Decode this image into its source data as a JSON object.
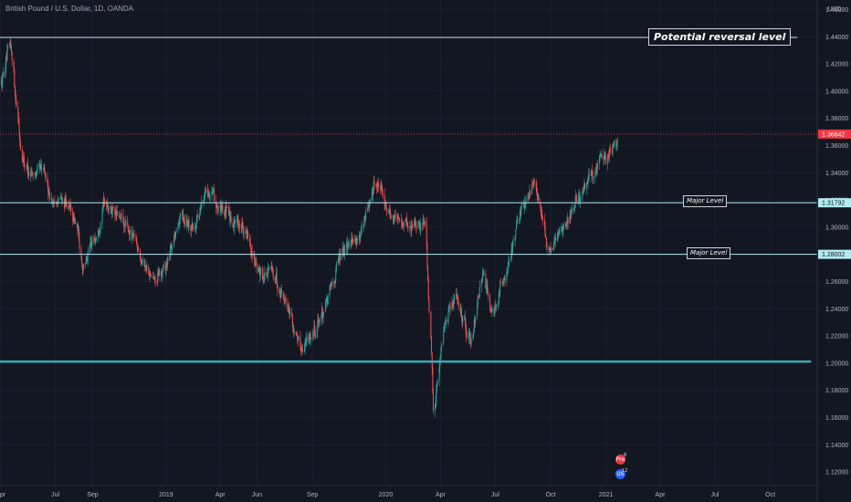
{
  "header": {
    "symbol_title": "British Pound / U.S. Dollar, 1D, OANDA",
    "currency": "USD"
  },
  "colors": {
    "background": "#131722",
    "grid": "#1c2030",
    "up": "#26a69a",
    "down": "#ef5350",
    "axis_text": "#b2b5be",
    "hline_white": "#d1d4dc",
    "hline_cyan": "#b2ebf2",
    "hline_teal": "#3aa6b9",
    "price_tag": "#f23645"
  },
  "annotations": {
    "potential_reversal": "Potential reversal level",
    "major_level_1": "Major Level",
    "major_level_2": "Major Level"
  },
  "events": {
    "marker_top_label": "Pre",
    "marker_top_count": "8",
    "marker_bottom_label": "US",
    "marker_bottom_count": "12"
  },
  "chart_data": {
    "type": "candlestick",
    "ylim": [
      1.11,
      1.465
    ],
    "y_ticks": [
      {
        "value": 1.12,
        "label": "1.12000"
      },
      {
        "value": 1.14,
        "label": "1.14000"
      },
      {
        "value": 1.16,
        "label": "1.16000"
      },
      {
        "value": 1.18,
        "label": "1.18000"
      },
      {
        "value": 1.2,
        "label": "1.20000"
      },
      {
        "value": 1.22,
        "label": "1.22000"
      },
      {
        "value": 1.24,
        "label": "1.24000"
      },
      {
        "value": 1.26,
        "label": "1.26000"
      },
      {
        "value": 1.28,
        "label": "1.28000"
      },
      {
        "value": 1.3,
        "label": "1.30000"
      },
      {
        "value": 1.32,
        "label": "1.32000"
      },
      {
        "value": 1.34,
        "label": "1.34000"
      },
      {
        "value": 1.36,
        "label": "1.36000"
      },
      {
        "value": 1.38,
        "label": "1.38000"
      },
      {
        "value": 1.4,
        "label": "1.40000"
      },
      {
        "value": 1.42,
        "label": "1.42000"
      },
      {
        "value": 1.44,
        "label": "1.44000"
      },
      {
        "value": 1.46,
        "label": "1.46000"
      }
    ],
    "x_ticks": [
      "Apr",
      "Jul",
      "Sep",
      "2019",
      "Apr",
      "Jun",
      "Sep",
      "2020",
      "Apr",
      "Jul",
      "Oct",
      "2021",
      "Apr",
      "Jul",
      "Oct"
    ],
    "x_tick_dates": [
      "2018-04-01",
      "2018-07-01",
      "2018-09-01",
      "2019-01-01",
      "2019-04-01",
      "2019-06-01",
      "2019-09-01",
      "2020-01-01",
      "2020-04-01",
      "2020-07-01",
      "2020-10-01",
      "2021-01-01",
      "2021-04-01",
      "2021-07-01",
      "2021-10-01"
    ],
    "x_range": [
      "2018-03-31",
      "2021-12-18"
    ],
    "price_tags": [
      {
        "value": 1.36842,
        "label": "1.36842",
        "kind": "last"
      },
      {
        "value": 1.31792,
        "label": "1.31792",
        "kind": "level"
      },
      {
        "value": 1.28002,
        "label": "1.28002",
        "kind": "level"
      }
    ],
    "horizontal_lines": [
      {
        "value": 1.4395,
        "color": "#d1d4dc",
        "start": "2018-03-31",
        "end": "2021-11-15",
        "thick": false
      },
      {
        "value": 1.31792,
        "color": "#b2ebf2",
        "start": "2018-03-31",
        "end": "2021-12-18",
        "thick": false
      },
      {
        "value": 1.28002,
        "color": "#b2ebf2",
        "start": "2018-03-31",
        "end": "2021-12-18",
        "thick": false
      },
      {
        "value": 1.2012,
        "color": "#3aa6b9",
        "start": "2018-03-31",
        "end": "2021-12-08",
        "thick": true
      },
      {
        "value": 1.36842,
        "color": "#f23645",
        "start": "2018-03-31",
        "end": "2021-12-18",
        "thick": false,
        "dotted": true
      }
    ],
    "price_path": [
      [
        "2018-03-31",
        1.405
      ],
      [
        "2018-04-17",
        1.434
      ],
      [
        "2018-05-05",
        1.352
      ],
      [
        "2018-05-20",
        1.338
      ],
      [
        "2018-06-10",
        1.342
      ],
      [
        "2018-06-25",
        1.318
      ],
      [
        "2018-07-15",
        1.32
      ],
      [
        "2018-08-05",
        1.3
      ],
      [
        "2018-08-15",
        1.27
      ],
      [
        "2018-09-05",
        1.295
      ],
      [
        "2018-09-20",
        1.32
      ],
      [
        "2018-10-15",
        1.305
      ],
      [
        "2018-11-10",
        1.29
      ],
      [
        "2018-12-10",
        1.258
      ],
      [
        "2018-12-30",
        1.27
      ],
      [
        "2019-01-25",
        1.31
      ],
      [
        "2019-02-15",
        1.3
      ],
      [
        "2019-03-10",
        1.33
      ],
      [
        "2019-03-25",
        1.315
      ],
      [
        "2019-04-15",
        1.308
      ],
      [
        "2019-05-10",
        1.3
      ],
      [
        "2019-06-01",
        1.265
      ],
      [
        "2019-06-25",
        1.268
      ],
      [
        "2019-07-20",
        1.245
      ],
      [
        "2019-08-10",
        1.21
      ],
      [
        "2019-08-25",
        1.22
      ],
      [
        "2019-09-05",
        1.225
      ],
      [
        "2019-09-25",
        1.245
      ],
      [
        "2019-10-15",
        1.278
      ],
      [
        "2019-10-31",
        1.292
      ],
      [
        "2019-11-20",
        1.293
      ],
      [
        "2019-12-13",
        1.335
      ],
      [
        "2019-12-31",
        1.316
      ],
      [
        "2020-01-20",
        1.305
      ],
      [
        "2020-02-15",
        1.3
      ],
      [
        "2020-03-06",
        1.305
      ],
      [
        "2020-03-20",
        1.16
      ],
      [
        "2020-04-05",
        1.23
      ],
      [
        "2020-04-25",
        1.248
      ],
      [
        "2020-05-20",
        1.218
      ],
      [
        "2020-06-10",
        1.265
      ],
      [
        "2020-06-25",
        1.236
      ],
      [
        "2020-07-20",
        1.27
      ],
      [
        "2020-08-10",
        1.31
      ],
      [
        "2020-09-03",
        1.335
      ],
      [
        "2020-09-25",
        1.28
      ],
      [
        "2020-10-15",
        1.298
      ],
      [
        "2020-11-05",
        1.31
      ],
      [
        "2020-12-01",
        1.335
      ],
      [
        "2020-12-20",
        1.345
      ],
      [
        "2021-01-20",
        1.368
      ]
    ],
    "candle_start": "2018-03-31",
    "candle_end": "2021-01-20"
  }
}
